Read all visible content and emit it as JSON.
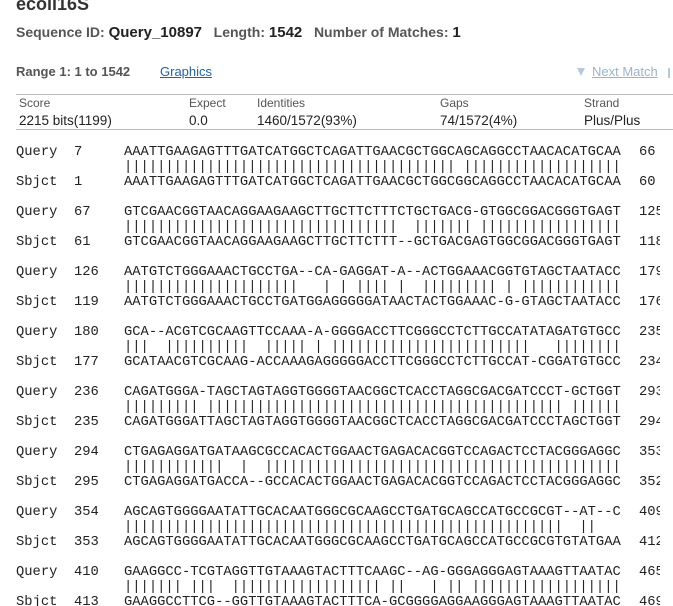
{
  "header": {
    "title": "ecoli16S",
    "sequence_id_label": "Sequence ID:",
    "sequence_id": "Query_10897",
    "length_label": "Length:",
    "length": 1542,
    "matches_label": "Number of Matches:",
    "matches": 1
  },
  "range": {
    "label": "Range 1: 1 to 1542",
    "graphics": "Graphics",
    "next_match": "Next Match"
  },
  "stats": {
    "headers": [
      "Score",
      "Expect",
      "Identities",
      "Gaps",
      "Strand"
    ],
    "values": [
      "2215 bits(1199)",
      "0.0",
      "1460/1572(93%)",
      "74/1572(4%)",
      "Plus/Plus"
    ]
  },
  "alignment": [
    {
      "query_label": "Query",
      "query_start": 7,
      "query_seq": "AAATTGAAGAGTTTGATCATGGCTCAGATTGAACGCTGGCAGCAGGCCTAACACATGCAA",
      "query_end": 66,
      "match": "|||||||||||||||||||||||||||||||||||||||| |||||||||||||||||||",
      "sbjct_label": "Sbjct",
      "sbjct_start": 1,
      "sbjct_seq": "AAATTGAAGAGTTTGATCATGGCTCAGATTGAACGCTGGCGGCAGGCCTAACACATGCAA",
      "sbjct_end": 60
    },
    {
      "query_label": "Query",
      "query_start": 67,
      "query_seq": "GTCGAACGGTAACAGGAAGAAGCTTGCTTCTTTCTGCTGACG-GTGGCGGACGGGTGAGT",
      "query_end": 125,
      "match": "|||||||||||||||||||||||||||||||||  ||||||| |||||||||||||||||",
      "sbjct_label": "Sbjct",
      "sbjct_start": 61,
      "sbjct_seq": "GTCGAACGGTAACAGGAAGAAGCTTGCTTCTTT--GCTGACGAGTGGCGGACGGGTGAGT",
      "sbjct_end": 118
    },
    {
      "query_label": "Query",
      "query_start": 126,
      "query_seq": "AATGTCTGGGAAACTGCCTGA--CA-GAGGAT-A--ACTGGAAACGGTGTAGCTAATACC",
      "query_end": 179,
      "match": "|||||||||||||||||||||   | | |||| |  ||||||||| | ||||||||||||",
      "sbjct_label": "Sbjct",
      "sbjct_start": 119,
      "sbjct_seq": "AATGTCTGGGAAACTGCCTGATGGAGGGGGATAACTACTGGAAAC-G-GTAGCTAATACC",
      "sbjct_end": 176
    },
    {
      "query_label": "Query",
      "query_start": 180,
      "query_seq": "GCA--ACGTCGCAAGTTCCAAA-A-GGGGACCTTCGGGCCTCTTGCCATATAGATGTGCC",
      "query_end": 235,
      "match": "|||  ||||||||||  ||||| | ||||||||||||||||||||||||   ||||||||",
      "sbjct_label": "Sbjct",
      "sbjct_start": 177,
      "sbjct_seq": "GCATAACGTCGCAAG-ACCAAAGAGGGGGACCTTCGGGCCTCTTGCCAT-CGGATGTGCC",
      "sbjct_end": 234
    },
    {
      "query_label": "Query",
      "query_start": 236,
      "query_seq": "CAGATGGGA-TAGCTAGTAGGTGGGGTAACGGCTCACCTAGGCGACGATCCCT-GCTGGT",
      "query_end": 293,
      "match": "||||||||| ||||||||||||||||||||||||||||||||||||||||||| ||||||",
      "sbjct_label": "Sbjct",
      "sbjct_start": 235,
      "sbjct_seq": "CAGATGGGATTAGCTAGTAGGTGGGGTAACGGCTCACCTAGGCGACGATCCCTAGCTGGT",
      "sbjct_end": 294
    },
    {
      "query_label": "Query",
      "query_start": 294,
      "query_seq": "CTGAGAGGATGATAAGCGCCACACTGGAACTGAGACACGGTCCAGACTCCTACGGGAGGC",
      "query_end": 353,
      "match": "||||||||||||  |  |||||||||||||||||||||||||||||||||||||||||||",
      "sbjct_label": "Sbjct",
      "sbjct_start": 295,
      "sbjct_seq": "CTGAGAGGATGACCA--GCCACACTGGAACTGAGACACGGTCCAGACTCCTACGGGAGGC",
      "sbjct_end": 352
    },
    {
      "query_label": "Query",
      "query_start": 354,
      "query_seq": "AGCAGTGGGGAATATTGCACAATGGGCGCAAGCCTGATGCAGCCATGCCGCGT--AT--C",
      "query_end": 409,
      "match": "|||||||||||||||||||||||||||||||||||||||||||||||||||||  ||   ",
      "sbjct_label": "Sbjct",
      "sbjct_start": 353,
      "sbjct_seq": "AGCAGTGGGGAATATTGCACAATGGGCGCAAGCCTGATGCAGCCATGCCGCGTGTATGAA",
      "sbjct_end": 412
    },
    {
      "query_label": "Query",
      "query_start": 410,
      "query_seq": "GAAGGCC-TCGTAGGTTGTAAAGTACTTTCAAGC--AG-GGGAGGGAGTAAAGTTAATAC",
      "query_end": 465,
      "match": "||||||| |||  |||||||||||||||||| ||   | || ||||||||||||||||||",
      "sbjct_label": "Sbjct",
      "sbjct_start": 413,
      "sbjct_seq": "GAAGGCCTTCG--GGTTGTAAAGTACTTTCA-GCGGGGAGGAAGGGAGTAAAGTTAATAC",
      "sbjct_end": 469
    }
  ]
}
